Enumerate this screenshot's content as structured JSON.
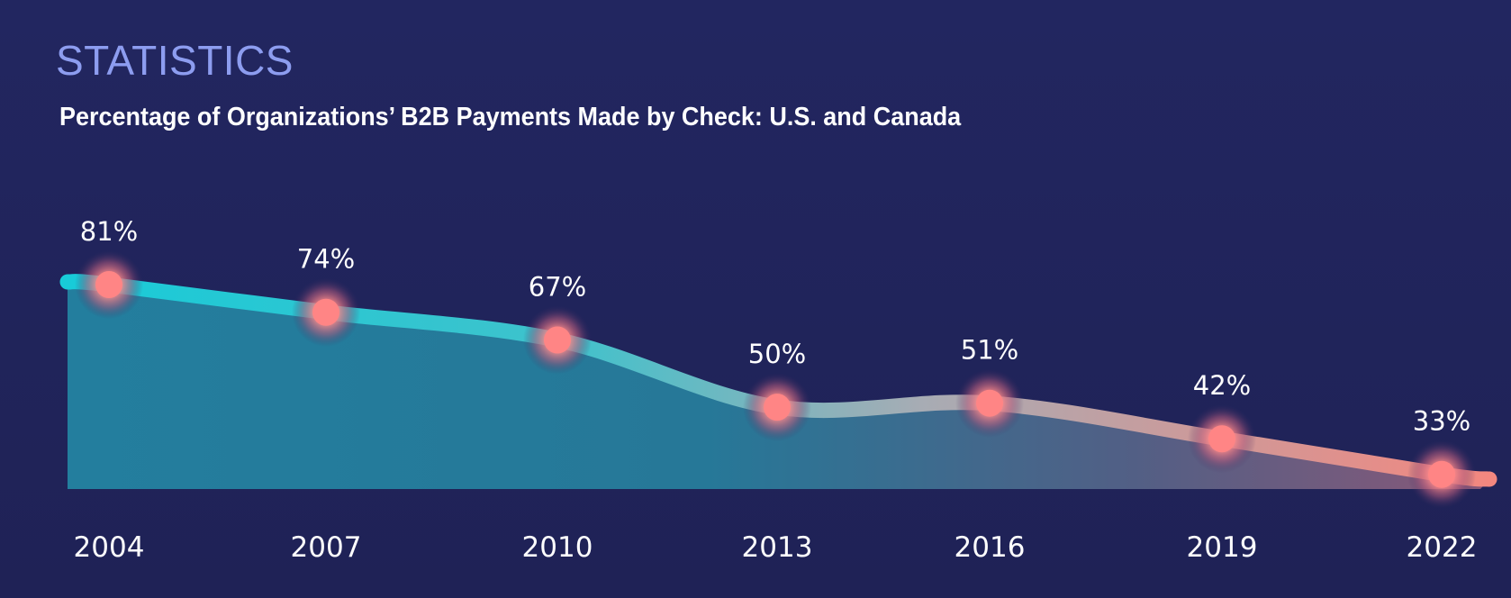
{
  "header": {
    "kicker": "STATISTICS",
    "title": "Percentage of Organizations’ B2B Payments Made by Check: U.S. and Canada"
  },
  "colors": {
    "background": "#20235a",
    "kicker": "#8d9df0",
    "line_start": "#18cbd8",
    "line_end": "#f3877f",
    "fill_start": "#237e9e",
    "fill_end": "#8a5878",
    "point": "#ff8585"
  },
  "chart_data": {
    "type": "area",
    "title": "Percentage of Organizations’ B2B Payments Made by Check: U.S. and Canada",
    "xlabel": "",
    "ylabel": "",
    "categories": [
      "2004",
      "2007",
      "2010",
      "2013",
      "2016",
      "2019",
      "2022"
    ],
    "values": [
      81,
      74,
      67,
      50,
      51,
      42,
      33
    ],
    "data_labels": [
      "81%",
      "74%",
      "67%",
      "50%",
      "51%",
      "42%",
      "33%"
    ],
    "grid": false,
    "legend": "none"
  }
}
